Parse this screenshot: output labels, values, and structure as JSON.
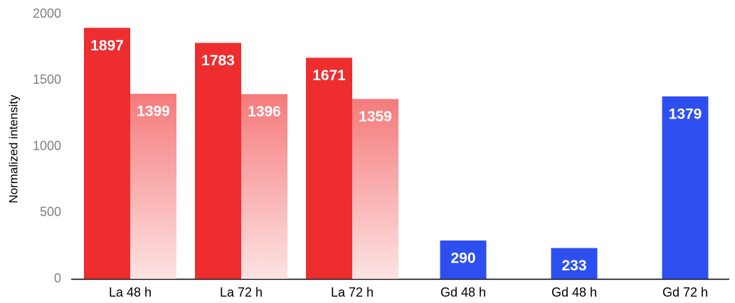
{
  "chart_data": {
    "type": "bar",
    "y_label": "Normalized intensity",
    "categories": [
      "La 48 h",
      "La 72 h",
      "La 72 h",
      "Gd 48 h",
      "Gd 48 h",
      "Gd 72 h"
    ],
    "series": [
      {
        "colors": [
          "#ee2d2f",
          "#ee2d2f",
          "#ee2d2f",
          "#2e4ff0",
          "#2e4ff0",
          "#2e4ff0"
        ],
        "values": [
          1897,
          1783,
          1671,
          290,
          233,
          1379
        ]
      },
      {
        "color": "#f57a7b",
        "values": [
          1399,
          1396,
          1359,
          null,
          null,
          null
        ]
      }
    ],
    "ylim": [
      0,
      2000
    ],
    "yticks": [
      0,
      500,
      1000,
      1500,
      2000
    ],
    "grid": false
  }
}
